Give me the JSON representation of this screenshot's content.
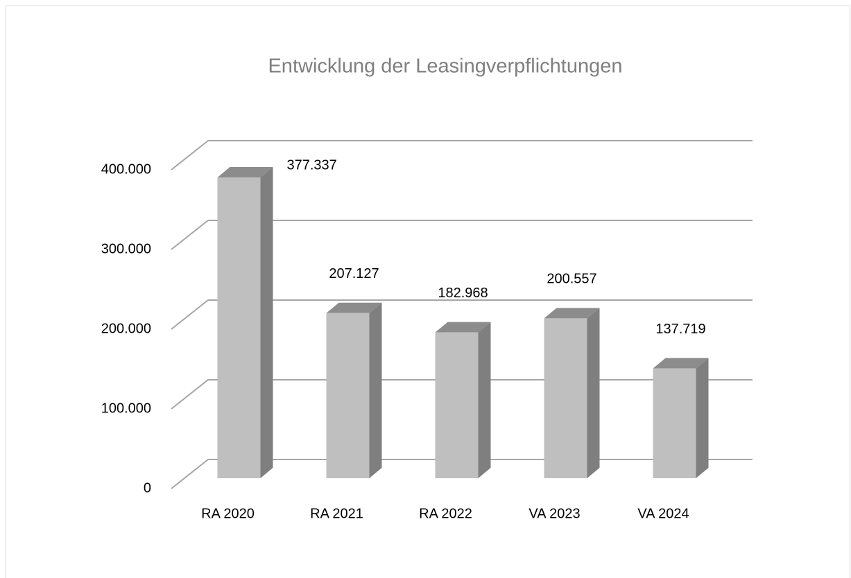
{
  "chart_data": {
    "type": "bar3d",
    "title": "Entwicklung der Leasingverpflichtungen",
    "categories": [
      "RA 2020",
      "RA 2021",
      "RA 2022",
      "VA 2023",
      "VA 2024"
    ],
    "values": [
      377337,
      207127,
      182968,
      200557,
      137719
    ],
    "value_labels": [
      "377.337",
      "207.127",
      "182.968",
      "200.557",
      "137.719"
    ],
    "color": "#bfbfbf",
    "ylim": [
      0,
      400000
    ],
    "yticks": [
      0,
      {
        "value": 100000,
        "label": "100.000"
      },
      {
        "value": 200000,
        "label": "200.000"
      },
      {
        "value": 300000,
        "label": "300.000"
      },
      {
        "value": 400000,
        "label": "400.000"
      }
    ],
    "grid": true
  }
}
